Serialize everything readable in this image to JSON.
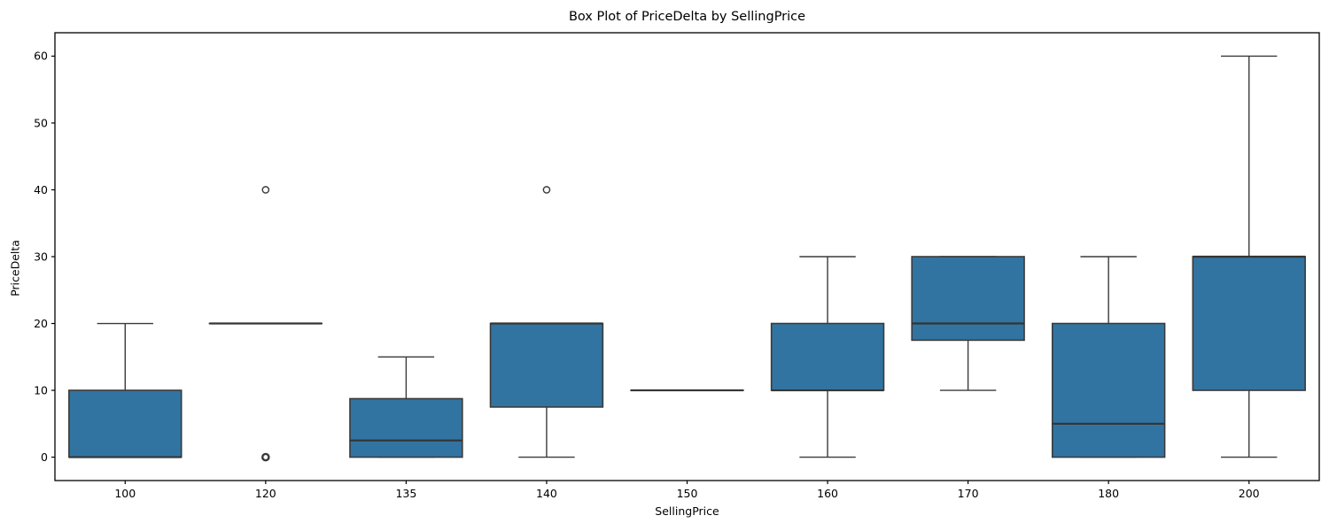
{
  "chart_data": {
    "type": "box",
    "title": "Box Plot of PriceDelta by SellingPrice",
    "xlabel": "SellingPrice",
    "ylabel": "PriceDelta",
    "categories": [
      "100",
      "120",
      "135",
      "140",
      "150",
      "160",
      "170",
      "180",
      "200"
    ],
    "boxes": [
      {
        "category": "100",
        "whislo": 0,
        "q1": 0,
        "med": 0,
        "q3": 10,
        "whishi": 20,
        "fliers": []
      },
      {
        "category": "120",
        "whislo": 20,
        "q1": 20,
        "med": 20,
        "q3": 20,
        "whishi": 20,
        "fliers": [
          0,
          0,
          40
        ]
      },
      {
        "category": "135",
        "whislo": 0,
        "q1": 0,
        "med": 2.5,
        "q3": 8.75,
        "whishi": 15,
        "fliers": []
      },
      {
        "category": "140",
        "whislo": 0,
        "q1": 7.5,
        "med": 20,
        "q3": 20,
        "whishi": 20,
        "fliers": [
          40
        ]
      },
      {
        "category": "150",
        "whislo": 10,
        "q1": 10,
        "med": 10,
        "q3": 10,
        "whishi": 10,
        "fliers": []
      },
      {
        "category": "160",
        "whislo": 0,
        "q1": 10,
        "med": 10,
        "q3": 20,
        "whishi": 30,
        "fliers": []
      },
      {
        "category": "170",
        "whislo": 10,
        "q1": 17.5,
        "med": 20,
        "q3": 30,
        "whishi": 30,
        "fliers": []
      },
      {
        "category": "180",
        "whislo": 0,
        "q1": 0,
        "med": 5,
        "q3": 20,
        "whishi": 30,
        "fliers": []
      },
      {
        "category": "200",
        "whislo": 0,
        "q1": 10,
        "med": 30,
        "q3": 30,
        "whishi": 60,
        "fliers": []
      }
    ],
    "yticks": [
      0,
      10,
      20,
      30,
      40,
      50,
      60
    ],
    "ylim": [
      -3.5,
      63.5
    ],
    "grid": false,
    "legend": null,
    "colors": {
      "box_fill": "#3274a1",
      "box_edge": "#3a3a3a",
      "whisker": "#3a3a3a",
      "median": "#343434",
      "flier_edge": "#3a3a3a",
      "spine": "#000000"
    }
  }
}
